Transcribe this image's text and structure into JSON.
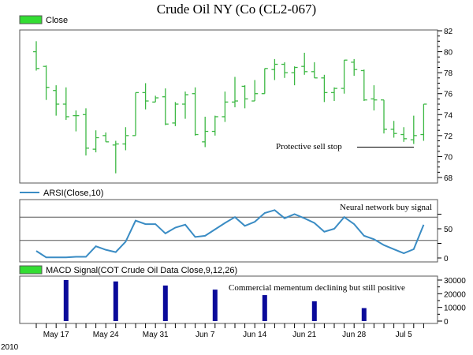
{
  "title": "Crude Oil NY (Co (CL2-067)",
  "year_label": "2010",
  "colors": {
    "bar": "#3cb843",
    "rsi": "#3a8cc4",
    "macd": "#0a0a9a",
    "legend_green": "#33dd33"
  },
  "chart_data": [
    {
      "type": "ohlc",
      "legend": "Close",
      "ylim": [
        68,
        82
      ],
      "yticks": [
        "82",
        "80",
        "78",
        "76",
        "74",
        "72",
        "70",
        "68"
      ],
      "annotation": "Protective sell stop",
      "stop_level": 70.9,
      "open": [
        80.0,
        78.6,
        76.3,
        75.0,
        73.9,
        74.0,
        70.7,
        72.0,
        71.1,
        71.2,
        72.0,
        76.1,
        75.2,
        75.7,
        73.2,
        75.0,
        76.0,
        71.4,
        72.4,
        73.8,
        75.2,
        76.7,
        75.3,
        76.0,
        78.3,
        78.8,
        78.0,
        78.6,
        78.1,
        77.5,
        76.1,
        76.5,
        79.0,
        78.2,
        75.5,
        75.4,
        72.6,
        72.1,
        71.6,
        72.1
      ],
      "high": [
        81.0,
        78.7,
        76.8,
        76.6,
        74.4,
        74.6,
        72.5,
        72.3,
        71.5,
        72.8,
        76.1,
        77.0,
        75.8,
        76.5,
        75.2,
        76.2,
        76.6,
        73.8,
        73.9,
        76.2,
        77.6,
        76.8,
        77.3,
        78.4,
        79.3,
        79.0,
        78.6,
        79.9,
        79.0,
        77.8,
        76.6,
        79.2,
        79.3,
        78.3,
        76.8,
        75.4,
        73.4,
        72.8,
        73.9,
        75.0
      ],
      "low": [
        78.2,
        75.4,
        73.9,
        73.5,
        72.4,
        70.1,
        70.4,
        71.4,
        68.4,
        70.6,
        72.0,
        74.5,
        75.2,
        73.0,
        72.9,
        73.6,
        72.0,
        70.9,
        72.0,
        73.3,
        74.7,
        74.6,
        75.3,
        76.0,
        77.3,
        77.5,
        76.8,
        77.8,
        77.5,
        75.2,
        75.3,
        76.0,
        77.7,
        75.3,
        74.4,
        72.2,
        71.8,
        71.4,
        71.2,
        71.5
      ],
      "close": [
        78.4,
        76.6,
        75.0,
        73.8,
        73.9,
        70.8,
        71.8,
        71.4,
        71.2,
        72.0,
        76.1,
        75.3,
        75.6,
        73.1,
        75.0,
        75.9,
        72.1,
        72.4,
        73.8,
        75.2,
        75.3,
        75.5,
        76.0,
        78.4,
        78.8,
        78.0,
        78.5,
        78.1,
        77.5,
        76.1,
        76.5,
        79.2,
        78.3,
        75.4,
        75.4,
        72.6,
        72.2,
        71.7,
        72.0,
        75.0
      ]
    },
    {
      "type": "line",
      "legend": "ARSI(Close,10)",
      "ylim": [
        0,
        100
      ],
      "yticks": [
        "50",
        "0"
      ],
      "reference_lines": [
        30,
        70
      ],
      "annotation": "Neural network buy signal",
      "values": [
        12,
        1,
        1,
        1,
        2,
        2,
        20,
        14,
        10,
        28,
        64,
        58,
        58,
        42,
        52,
        57,
        36,
        38,
        49,
        60,
        70,
        55,
        62,
        77,
        82,
        68,
        75,
        68,
        60,
        45,
        50,
        70,
        58,
        38,
        32,
        22,
        15,
        8,
        15,
        57
      ]
    },
    {
      "type": "bar",
      "legend": "MACD Signal(COT Crude Oil Data Close,9,12,26)",
      "ylim": [
        0,
        32000
      ],
      "yticks": [
        "30000",
        "20000",
        "10000",
        "0"
      ],
      "annotation": "Commercial mementum declining but still positive",
      "bar_index": [
        3,
        8,
        13,
        18,
        23,
        28,
        33
      ],
      "values": [
        30000,
        29000,
        26000,
        23000,
        19000,
        14500,
        9500
      ]
    }
  ],
  "x_axis": {
    "labels": [
      "May 17",
      "May 24",
      "May 31",
      "Jun 7",
      "Jun 14",
      "Jun 21",
      "Jun 28",
      "Jul 5"
    ],
    "label_index": [
      2,
      7,
      12,
      17,
      22,
      27,
      32,
      37
    ]
  }
}
